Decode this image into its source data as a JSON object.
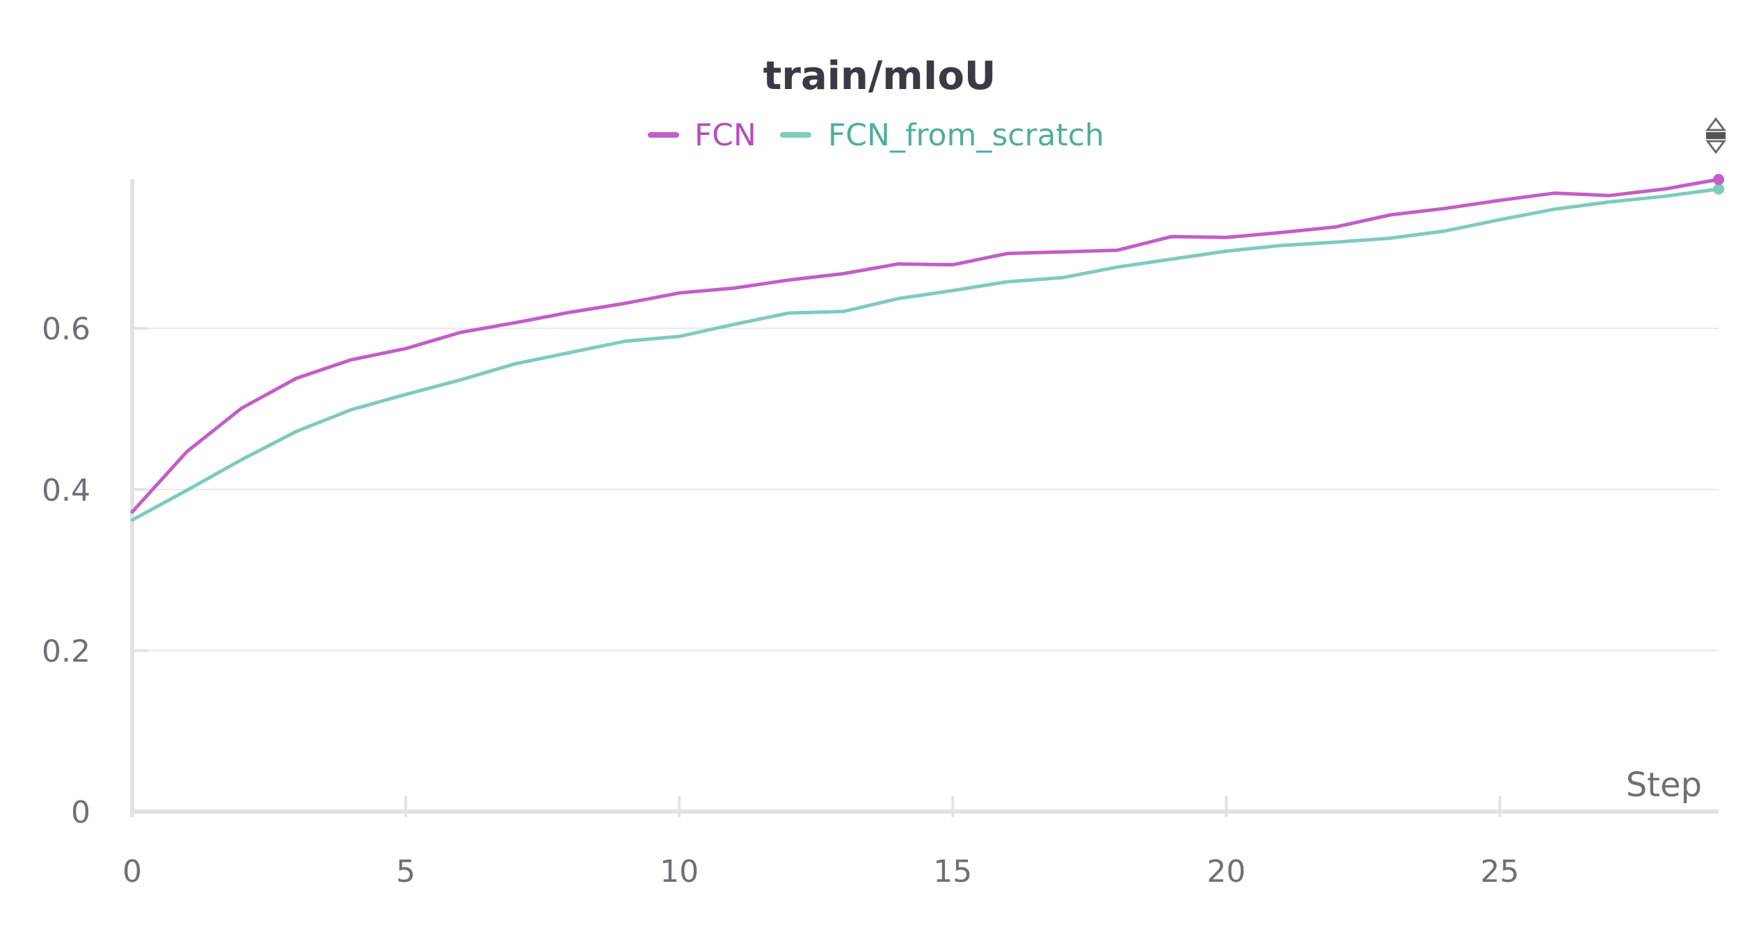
{
  "chart_data": {
    "type": "line",
    "title": "train/mIoU",
    "xlabel": "Step",
    "ylabel": "",
    "xlim": [
      0,
      29
    ],
    "ylim": [
      0,
      0.785
    ],
    "xticks": [
      0,
      5,
      10,
      15,
      20,
      25
    ],
    "yticks": [
      0,
      0.2,
      0.4,
      0.6
    ],
    "grid": true,
    "legend_position": "top-center",
    "x": [
      0,
      1,
      2,
      3,
      4,
      5,
      6,
      7,
      8,
      9,
      10,
      11,
      12,
      13,
      14,
      15,
      16,
      17,
      18,
      19,
      20,
      21,
      22,
      23,
      24,
      25,
      26,
      27,
      28,
      29
    ],
    "series": [
      {
        "name": "FCN",
        "color": "#c25ec7",
        "values": [
          0.372,
          0.447,
          0.501,
          0.538,
          0.561,
          0.575,
          0.595,
          0.607,
          0.62,
          0.631,
          0.644,
          0.65,
          0.66,
          0.668,
          0.68,
          0.679,
          0.693,
          0.695,
          0.697,
          0.714,
          0.713,
          0.719,
          0.726,
          0.741,
          0.749,
          0.759,
          0.768,
          0.765,
          0.773,
          0.785
        ]
      },
      {
        "name": "FCN_from_scratch",
        "color": "#7ecbbd",
        "values": [
          0.362,
          0.399,
          0.437,
          0.472,
          0.499,
          0.518,
          0.536,
          0.556,
          0.57,
          0.584,
          0.59,
          0.605,
          0.619,
          0.621,
          0.637,
          0.647,
          0.658,
          0.663,
          0.676,
          0.686,
          0.696,
          0.703,
          0.707,
          0.712,
          0.721,
          0.735,
          0.748,
          0.757,
          0.764,
          0.773
        ]
      }
    ]
  }
}
